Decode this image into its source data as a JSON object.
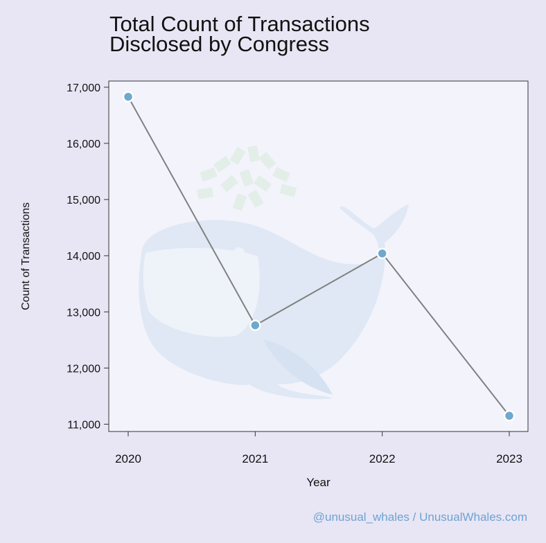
{
  "chart_data": {
    "type": "line",
    "title_lines": [
      "Total Count of Transactions",
      "Disclosed by Congress"
    ],
    "xlabel": "Year",
    "ylabel": "Count of Transactions",
    "categories": [
      "2020",
      "2021",
      "2022",
      "2023"
    ],
    "values": [
      16830,
      12760,
      14040,
      11150
    ],
    "yticks": [
      11000,
      12000,
      13000,
      14000,
      15000,
      16000,
      17000
    ],
    "ytick_labels": [
      "11,000",
      "12,000",
      "13,000",
      "14,000",
      "15,000",
      "16,000",
      "17,000"
    ],
    "ylim": [
      10870,
      17110
    ],
    "grid": false,
    "colors": {
      "line": "#808080",
      "marker": "#6fa8cf",
      "marker_edge": "#ffffff",
      "plot_bg": "#f3f3fc",
      "page_bg": "#e8e6f4",
      "watermark": "#dce6f3"
    }
  },
  "footer": "@unusual_whales / UnusualWhales.com"
}
